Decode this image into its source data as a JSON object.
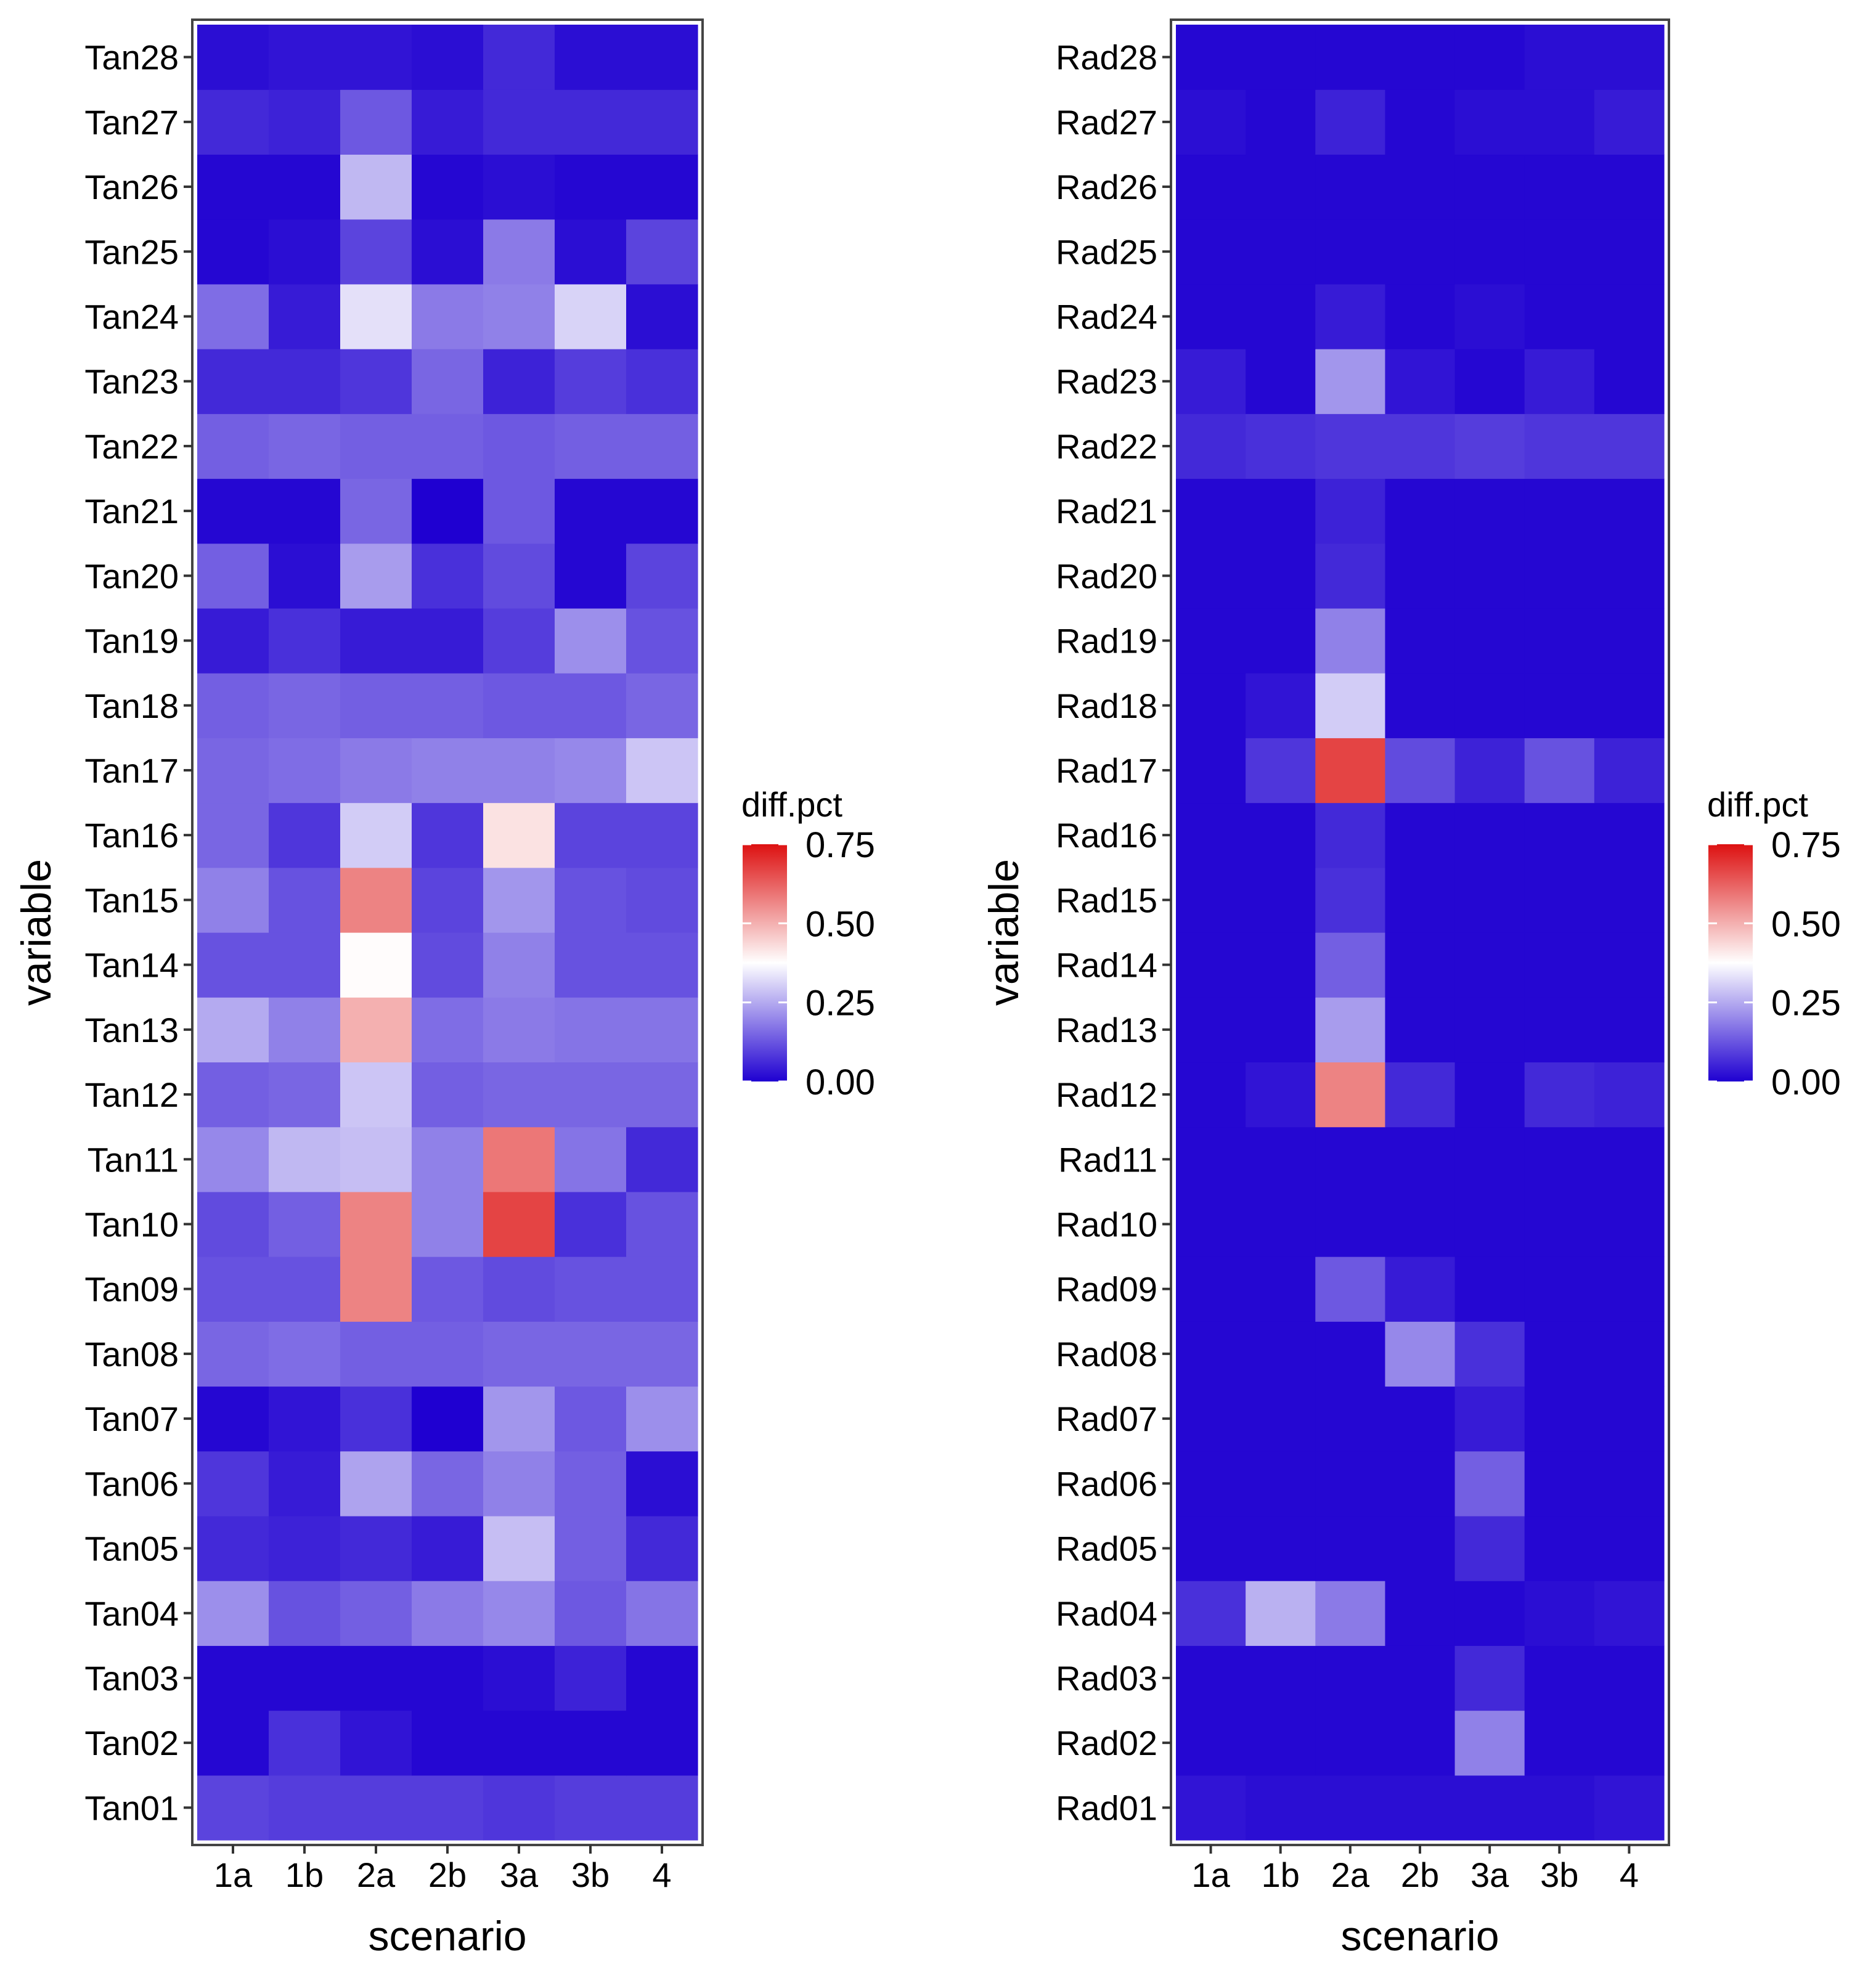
{
  "colors": {
    "low": "#1f00d1",
    "mid": "#ffffff",
    "high": "#dd1111",
    "panel_border": "#444444",
    "grid": "#d9d9d9"
  },
  "chart_data": [
    {
      "type": "heatmap",
      "xlabel": "scenario",
      "ylabel": "variable",
      "x": [
        "1a",
        "1b",
        "2a",
        "2b",
        "3a",
        "3b",
        "4"
      ],
      "y": [
        "Tan01",
        "Tan02",
        "Tan03",
        "Tan04",
        "Tan05",
        "Tan06",
        "Tan07",
        "Tan08",
        "Tan09",
        "Tan10",
        "Tan11",
        "Tan12",
        "Tan13",
        "Tan14",
        "Tan15",
        "Tan16",
        "Tan17",
        "Tan18",
        "Tan19",
        "Tan20",
        "Tan21",
        "Tan22",
        "Tan23",
        "Tan24",
        "Tan25",
        "Tan26",
        "Tan27",
        "Tan28"
      ],
      "values": [
        [
          0.1,
          0.09,
          0.09,
          0.09,
          0.08,
          0.09,
          0.09
        ],
        [
          0.01,
          0.07,
          0.03,
          0.01,
          0.01,
          0.01,
          0.01
        ],
        [
          0.01,
          0.01,
          0.01,
          0.01,
          0.02,
          0.05,
          0.01
        ],
        [
          0.21,
          0.12,
          0.14,
          0.18,
          0.2,
          0.13,
          0.17
        ],
        [
          0.06,
          0.05,
          0.06,
          0.04,
          0.28,
          0.14,
          0.06
        ],
        [
          0.08,
          0.04,
          0.24,
          0.15,
          0.19,
          0.14,
          0.02
        ],
        [
          0.01,
          0.03,
          0.07,
          0.0,
          0.22,
          0.13,
          0.21
        ],
        [
          0.15,
          0.16,
          0.14,
          0.14,
          0.15,
          0.15,
          0.15
        ],
        [
          0.12,
          0.12,
          0.57,
          0.13,
          0.11,
          0.12,
          0.12
        ],
        [
          0.11,
          0.14,
          0.57,
          0.19,
          0.67,
          0.07,
          0.12
        ],
        [
          0.2,
          0.27,
          0.28,
          0.19,
          0.59,
          0.17,
          0.06
        ],
        [
          0.14,
          0.15,
          0.29,
          0.14,
          0.15,
          0.15,
          0.15
        ],
        [
          0.25,
          0.19,
          0.5,
          0.16,
          0.18,
          0.17,
          0.17
        ],
        [
          0.12,
          0.12,
          0.38,
          0.11,
          0.19,
          0.12,
          0.12
        ],
        [
          0.19,
          0.12,
          0.57,
          0.1,
          0.22,
          0.12,
          0.11
        ],
        [
          0.15,
          0.08,
          0.3,
          0.08,
          0.42,
          0.1,
          0.1
        ],
        [
          0.15,
          0.16,
          0.18,
          0.19,
          0.19,
          0.2,
          0.29
        ],
        [
          0.14,
          0.15,
          0.14,
          0.14,
          0.13,
          0.13,
          0.15
        ],
        [
          0.04,
          0.07,
          0.04,
          0.04,
          0.09,
          0.21,
          0.12
        ],
        [
          0.14,
          0.02,
          0.23,
          0.07,
          0.11,
          0.01,
          0.1
        ],
        [
          0.01,
          0.01,
          0.15,
          0.0,
          0.13,
          0.01,
          0.01
        ],
        [
          0.14,
          0.15,
          0.14,
          0.14,
          0.13,
          0.14,
          0.14
        ],
        [
          0.06,
          0.06,
          0.08,
          0.15,
          0.05,
          0.09,
          0.07
        ],
        [
          0.16,
          0.04,
          0.33,
          0.18,
          0.19,
          0.31,
          0.02
        ],
        [
          0.01,
          0.02,
          0.1,
          0.02,
          0.18,
          0.02,
          0.1
        ],
        [
          0.01,
          0.01,
          0.27,
          0.01,
          0.02,
          0.01,
          0.01
        ],
        [
          0.06,
          0.05,
          0.13,
          0.04,
          0.06,
          0.06,
          0.06
        ],
        [
          0.02,
          0.03,
          0.03,
          0.02,
          0.06,
          0.02,
          0.02
        ]
      ],
      "legend": {
        "title": "diff.pct",
        "ticks": [
          "0.00",
          "0.25",
          "0.50",
          "0.75"
        ],
        "range": [
          0,
          0.75
        ],
        "position": "right"
      }
    },
    {
      "type": "heatmap",
      "xlabel": "scenario",
      "ylabel": "variable",
      "x": [
        "1a",
        "1b",
        "2a",
        "2b",
        "3a",
        "3b",
        "4"
      ],
      "y": [
        "Rad01",
        "Rad02",
        "Rad03",
        "Rad04",
        "Rad05",
        "Rad06",
        "Rad07",
        "Rad08",
        "Rad09",
        "Rad10",
        "Rad11",
        "Rad12",
        "Rad13",
        "Rad14",
        "Rad15",
        "Rad16",
        "Rad17",
        "Rad18",
        "Rad19",
        "Rad20",
        "Rad21",
        "Rad22",
        "Rad23",
        "Rad24",
        "Rad25",
        "Rad26",
        "Rad27",
        "Rad28"
      ],
      "values": [
        [
          0.03,
          0.02,
          0.02,
          0.02,
          0.02,
          0.02,
          0.03
        ],
        [
          0.01,
          0.01,
          0.01,
          0.01,
          0.19,
          0.01,
          0.01
        ],
        [
          0.01,
          0.01,
          0.01,
          0.01,
          0.06,
          0.01,
          0.01
        ],
        [
          0.07,
          0.26,
          0.18,
          0.01,
          0.01,
          0.02,
          0.03
        ],
        [
          0.01,
          0.01,
          0.01,
          0.01,
          0.06,
          0.01,
          0.01
        ],
        [
          0.01,
          0.01,
          0.01,
          0.01,
          0.14,
          0.01,
          0.01
        ],
        [
          0.01,
          0.01,
          0.01,
          0.01,
          0.04,
          0.01,
          0.01
        ],
        [
          0.01,
          0.01,
          0.01,
          0.2,
          0.07,
          0.01,
          0.01
        ],
        [
          0.01,
          0.01,
          0.13,
          0.04,
          0.01,
          0.01,
          0.01
        ],
        [
          0.01,
          0.01,
          0.01,
          0.01,
          0.01,
          0.01,
          0.01
        ],
        [
          0.01,
          0.01,
          0.01,
          0.01,
          0.01,
          0.01,
          0.01
        ],
        [
          0.01,
          0.03,
          0.57,
          0.06,
          0.01,
          0.06,
          0.05
        ],
        [
          0.01,
          0.01,
          0.23,
          0.01,
          0.01,
          0.01,
          0.01
        ],
        [
          0.01,
          0.01,
          0.14,
          0.01,
          0.01,
          0.01,
          0.01
        ],
        [
          0.01,
          0.01,
          0.07,
          0.01,
          0.01,
          0.01,
          0.01
        ],
        [
          0.01,
          0.01,
          0.06,
          0.01,
          0.01,
          0.01,
          0.01
        ],
        [
          0.01,
          0.08,
          0.67,
          0.11,
          0.05,
          0.12,
          0.05
        ],
        [
          0.01,
          0.03,
          0.3,
          0.01,
          0.01,
          0.01,
          0.01
        ],
        [
          0.01,
          0.01,
          0.19,
          0.01,
          0.01,
          0.01,
          0.01
        ],
        [
          0.01,
          0.01,
          0.06,
          0.01,
          0.01,
          0.01,
          0.01
        ],
        [
          0.01,
          0.01,
          0.05,
          0.01,
          0.01,
          0.01,
          0.01
        ],
        [
          0.06,
          0.07,
          0.08,
          0.08,
          0.09,
          0.08,
          0.08
        ],
        [
          0.04,
          0.01,
          0.22,
          0.03,
          0.01,
          0.04,
          0.01
        ],
        [
          0.01,
          0.01,
          0.04,
          0.01,
          0.02,
          0.01,
          0.01
        ],
        [
          0.01,
          0.01,
          0.01,
          0.01,
          0.01,
          0.01,
          0.01
        ],
        [
          0.01,
          0.01,
          0.01,
          0.01,
          0.01,
          0.01,
          0.01
        ],
        [
          0.02,
          0.01,
          0.05,
          0.01,
          0.02,
          0.02,
          0.04
        ],
        [
          0.01,
          0.01,
          0.01,
          0.01,
          0.01,
          0.02,
          0.02
        ]
      ],
      "legend": {
        "title": "diff.pct",
        "ticks": [
          "0.00",
          "0.25",
          "0.50",
          "0.75"
        ],
        "range": [
          0,
          0.75
        ],
        "position": "right"
      }
    }
  ]
}
